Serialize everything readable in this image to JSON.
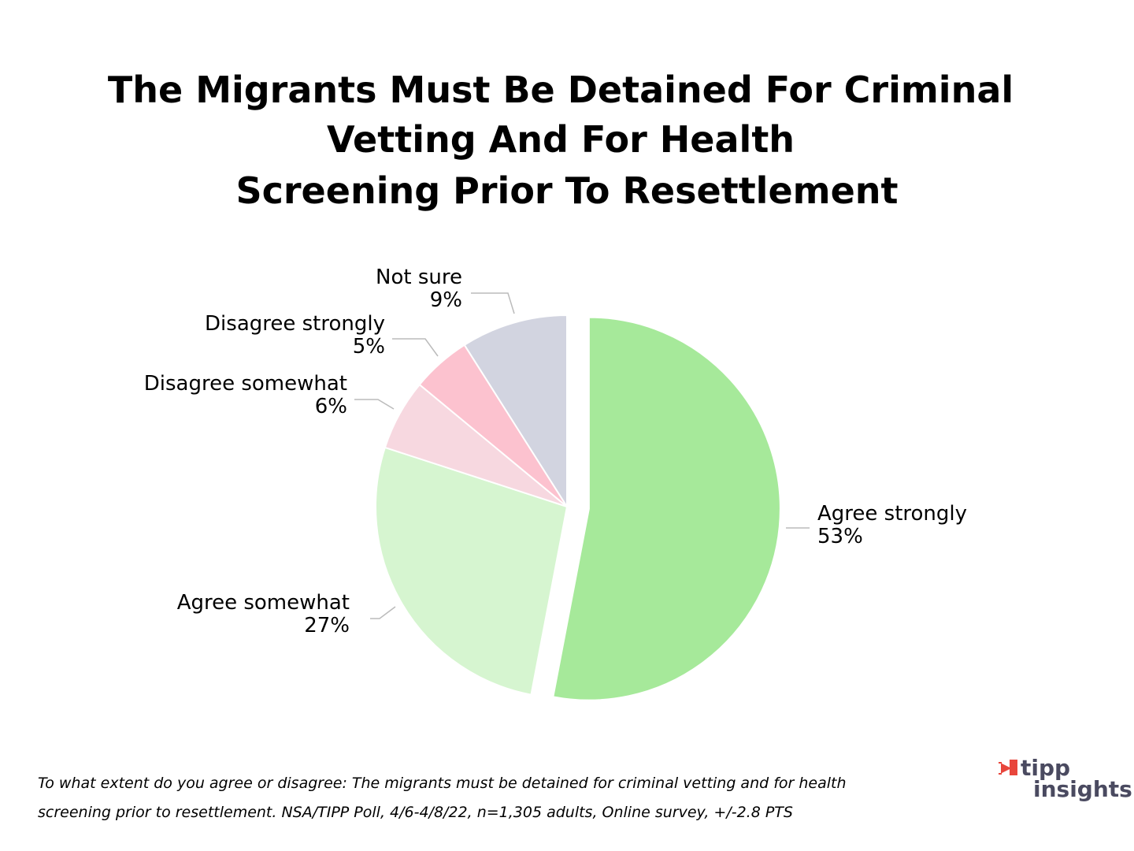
{
  "chart_data": {
    "type": "pie",
    "title": [
      "The Migrants Must Be Detained For Criminal",
      "Vetting And For Health",
      "Screening Prior To Resettlement"
    ],
    "categories": [
      "Agree strongly",
      "Agree somewhat",
      "Disagree somewhat",
      "Disagree strongly",
      "Not sure"
    ],
    "values": [
      53,
      27,
      6,
      5,
      9
    ],
    "value_labels": [
      "53%",
      "27%",
      "6%",
      "5%",
      "9%"
    ],
    "colors": [
      "#a6e99a",
      "#d6f5d0",
      "#f7d8e0",
      "#fcc2cf",
      "#d2d4e0"
    ],
    "footnote": [
      "To what extent do you agree or disagree: The migrants must be detained for criminal vetting and for health",
      "screening prior to resettlement. NSA/TIPP Poll, 4/6-4/8/22, n=1,305 adults, Online survey, +/-2.8 PTS"
    ],
    "logo": [
      "tipp",
      "insights"
    ]
  }
}
